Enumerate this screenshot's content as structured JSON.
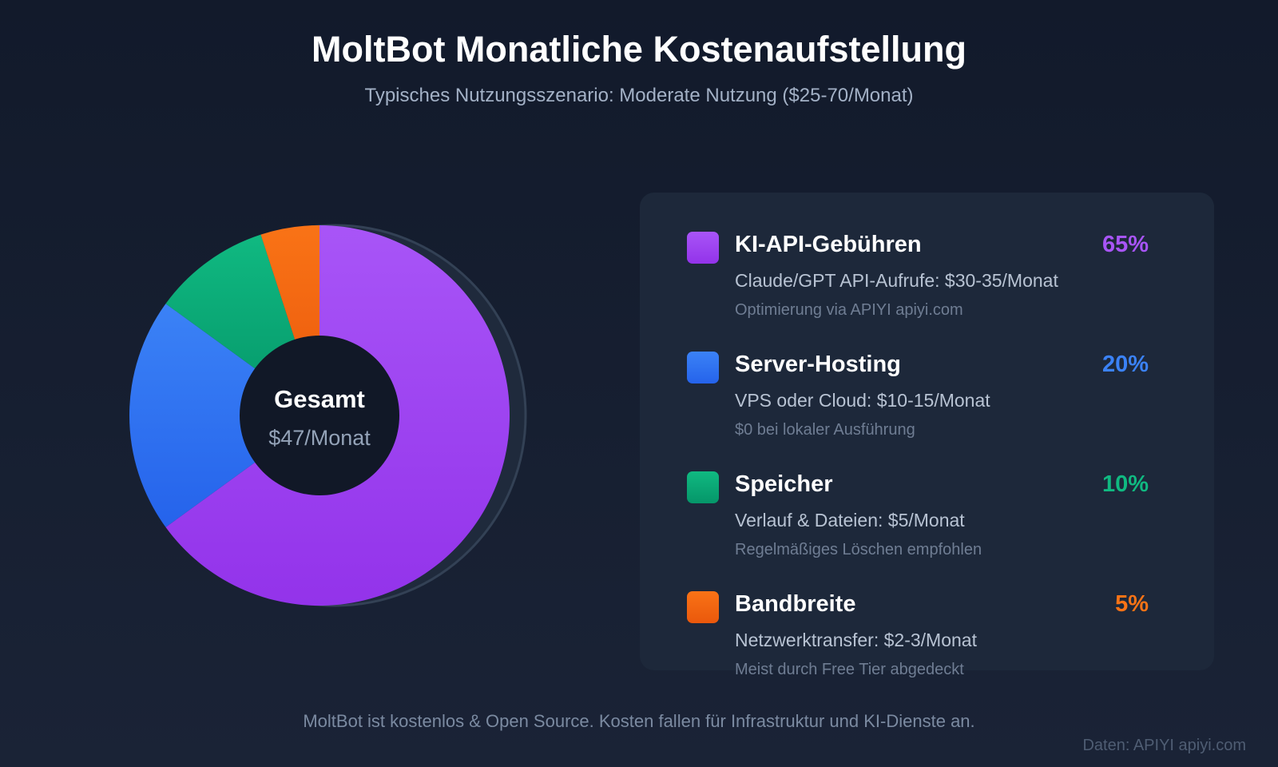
{
  "title": "MoltBot Monatliche Kostenaufstellung",
  "subtitle": "Typisches Nutzungsszenario: Moderate Nutzung ($25-70/Monat)",
  "chart_data": {
    "type": "pie",
    "variant": "donut",
    "center_label": "Gesamt",
    "center_value": "$47/Monat",
    "legend_position": "right",
    "series": [
      {
        "name": "KI-API-Gebühren",
        "value": 65,
        "pct_label": "65%",
        "color": "#9333ea",
        "color_light": "#a855f7",
        "detail": "Claude/GPT API-Aufrufe: $30-35/Monat",
        "note": "Optimierung via APIYI apiyi.com"
      },
      {
        "name": "Server-Hosting",
        "value": 20,
        "pct_label": "20%",
        "color": "#2563eb",
        "color_light": "#3b82f6",
        "detail": "VPS oder Cloud: $10-15/Monat",
        "note": "$0 bei lokaler Ausführung"
      },
      {
        "name": "Speicher",
        "value": 10,
        "pct_label": "10%",
        "color": "#059669",
        "color_light": "#10b981",
        "detail": "Verlauf & Dateien: $5/Monat",
        "note": "Regelmäßiges Löschen empfohlen"
      },
      {
        "name": "Bandbreite",
        "value": 5,
        "pct_label": "5%",
        "color": "#ea580c",
        "color_light": "#f97316",
        "detail": "Netzwerktransfer: $2-3/Monat",
        "note": "Meist durch Free Tier abgedeckt"
      }
    ]
  },
  "footer": "MoltBot ist kostenlos & Open Source. Kosten fallen für Infrastruktur und KI-Dienste an.",
  "source": "Daten: APIYI apiyi.com"
}
